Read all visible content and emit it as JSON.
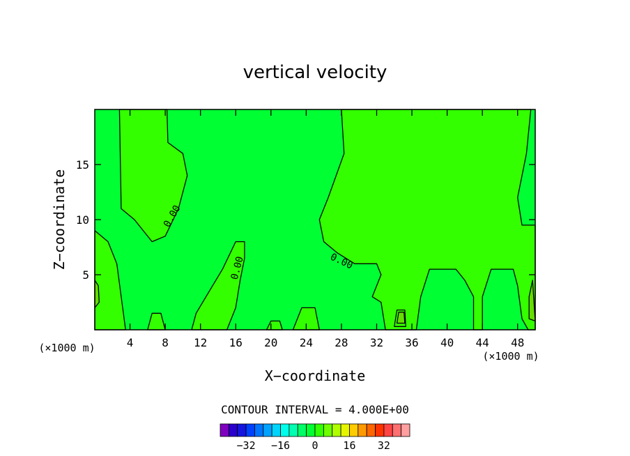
{
  "chart_data": {
    "type": "contour",
    "title": "vertical velocity",
    "xlabel": "X−coordinate",
    "ylabel": "Z−coordinate",
    "x_unit": "(×1000 m)",
    "y_unit": "(×1000 m)",
    "xlim": [
      0,
      50
    ],
    "ylim": [
      0,
      20
    ],
    "x_ticks": [
      4,
      8,
      12,
      16,
      20,
      24,
      28,
      32,
      36,
      40,
      44,
      48
    ],
    "x_tick_labels": [
      "4",
      "8",
      "12",
      "16",
      "20",
      "24",
      "28",
      "32",
      "36",
      "40",
      "44",
      "48"
    ],
    "y_ticks": [
      5,
      10,
      15
    ],
    "y_tick_labels": [
      "5",
      "10",
      "15"
    ],
    "contour_interval_text": "CONTOUR INTERVAL = 4.000E+00",
    "contour_labels": [
      {
        "text": "0.00",
        "x": 8.8,
        "z": 10.3,
        "angle": -60
      },
      {
        "text": "0.00",
        "x": 16.2,
        "z": 5.6,
        "angle": -75
      },
      {
        "text": "0.00",
        "x": 28.0,
        "z": 6.2,
        "angle": 25
      }
    ],
    "field_regions": [
      {
        "name": "positive",
        "color": "#33ff00",
        "polygon": [
          [
            2.8,
            20
          ],
          [
            3.0,
            11
          ],
          [
            4.5,
            10
          ],
          [
            6.5,
            8
          ],
          [
            8.0,
            8.5
          ],
          [
            9.5,
            11
          ],
          [
            10.5,
            14
          ],
          [
            10.0,
            16
          ],
          [
            8.3,
            17
          ],
          [
            8.2,
            20
          ]
        ]
      },
      {
        "name": "positive",
        "color": "#33ff00",
        "polygon": [
          [
            28,
            20
          ],
          [
            28.3,
            16
          ],
          [
            26.5,
            12
          ],
          [
            25.5,
            10
          ],
          [
            26.0,
            8
          ],
          [
            27.5,
            7
          ],
          [
            29.5,
            6
          ],
          [
            32.0,
            6
          ],
          [
            32.5,
            5
          ],
          [
            31.5,
            3
          ],
          [
            32.5,
            2.5
          ],
          [
            33.0,
            0
          ],
          [
            36.5,
            0
          ],
          [
            37.0,
            3
          ],
          [
            38.0,
            5.5
          ],
          [
            41.0,
            5.5
          ],
          [
            42.0,
            4.5
          ],
          [
            43.0,
            3
          ],
          [
            43.0,
            0
          ],
          [
            44.0,
            0
          ],
          [
            44.0,
            3
          ],
          [
            45.0,
            5.5
          ],
          [
            47.5,
            5.5
          ],
          [
            48.0,
            4
          ],
          [
            48.5,
            1
          ],
          [
            49.2,
            0
          ],
          [
            50,
            0
          ],
          [
            50,
            9.5
          ],
          [
            48.5,
            9.5
          ],
          [
            48.0,
            12
          ],
          [
            49.0,
            16
          ],
          [
            49.5,
            20
          ]
        ]
      },
      {
        "name": "positive",
        "color": "#33ff00",
        "polygon": [
          [
            11.0,
            0
          ],
          [
            11.5,
            1.5
          ],
          [
            13,
            3.5
          ],
          [
            14.5,
            5.5
          ],
          [
            16.0,
            8.0
          ],
          [
            17.0,
            8.0
          ],
          [
            17.0,
            6.5
          ],
          [
            16.5,
            4.5
          ],
          [
            16.0,
            2
          ],
          [
            15.0,
            0
          ]
        ]
      },
      {
        "name": "positive",
        "color": "#33ff00",
        "polygon": [
          [
            0,
            9
          ],
          [
            1.5,
            8
          ],
          [
            2.5,
            6
          ],
          [
            3.0,
            3
          ],
          [
            3.5,
            0
          ],
          [
            0,
            0
          ]
        ]
      },
      {
        "name": "positive",
        "color": "#33ff00",
        "polygon": [
          [
            22.5,
            0
          ],
          [
            23.5,
            2
          ],
          [
            25.0,
            2
          ],
          [
            25.5,
            0
          ]
        ]
      },
      {
        "name": "positive",
        "color": "#33ff00",
        "polygon": [
          [
            6.0,
            0
          ],
          [
            6.5,
            1.5
          ],
          [
            7.5,
            1.5
          ],
          [
            8.0,
            0
          ]
        ]
      },
      {
        "name": "positive",
        "color": "#33ff00",
        "polygon": [
          [
            19.5,
            0
          ],
          [
            20.0,
            0.8
          ],
          [
            21.0,
            0.8
          ],
          [
            21.3,
            0
          ]
        ]
      },
      {
        "name": "positive",
        "color": "#33ff00",
        "polygon": [
          [
            34.0,
            0.3
          ],
          [
            34.3,
            1.8
          ],
          [
            35.2,
            1.8
          ],
          [
            35.3,
            0.3
          ]
        ]
      },
      {
        "name": "strong-positive",
        "color": "#66dd00",
        "polygon": [
          [
            34.3,
            0.6
          ],
          [
            34.5,
            1.6
          ],
          [
            35.1,
            1.6
          ],
          [
            35.2,
            0.6
          ]
        ]
      },
      {
        "name": "strong-positive",
        "color": "#66dd00",
        "polygon": [
          [
            0,
            4.5
          ],
          [
            0.4,
            4.0
          ],
          [
            0.5,
            2.5
          ],
          [
            0,
            2.0
          ]
        ]
      },
      {
        "name": "strong-positive",
        "color": "#66dd00",
        "polygon": [
          [
            49.7,
            4.5
          ],
          [
            49.3,
            3.0
          ],
          [
            49.3,
            1.0
          ],
          [
            50,
            0.8
          ]
        ]
      }
    ],
    "background_color": "#00ff33",
    "colorbar": {
      "colors": [
        "#7f00bf",
        "#2a00cc",
        "#1515e0",
        "#0040ff",
        "#0073ff",
        "#00a3ff",
        "#00d4ff",
        "#00ffea",
        "#00ffb0",
        "#00ff66",
        "#00ff33",
        "#33ff00",
        "#70ff00",
        "#b0ff00",
        "#e5f500",
        "#ffcc00",
        "#ff9900",
        "#ff6600",
        "#ff3300",
        "#ff4444",
        "#ff7070",
        "#ff9f9f"
      ],
      "tick_values": [
        -32,
        -16,
        0,
        16,
        32
      ],
      "tick_labels": [
        "−32",
        "−16",
        "0",
        "16",
        "32"
      ],
      "range": [
        -44,
        44
      ]
    },
    "grid": false
  }
}
